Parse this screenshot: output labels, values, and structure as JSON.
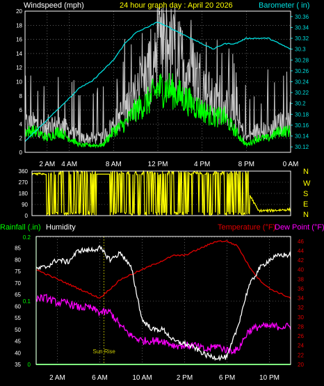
{
  "title": "24 hour graph day : April 20 2026",
  "colors": {
    "title": "#ffff00",
    "windspeed": "#ffffff",
    "gust": "#c8c8c8",
    "wind_avg": "#00ff00",
    "barometer": "#00e0e0",
    "direction": "#ffff00",
    "rainfall": "#00ff00",
    "humidity": "#ffffff",
    "temperature": "#e00000",
    "dewpoint": "#ff00ff",
    "axes": "#ffffff",
    "grid": "#9a9a9a",
    "sunrise": "#c8c800"
  },
  "chart_data": [
    {
      "type": "line",
      "title": "24 hour graph day : April 20 2026",
      "left_label": "Windspeed (mph)",
      "right_label": "Barometer ( in)",
      "x_ticks": [
        "2 AM",
        "4 AM",
        "8 AM",
        "12 PM",
        "4 PM",
        "8 PM",
        "0 AM"
      ],
      "ylim_left": [
        0,
        20
      ],
      "yticks_left": [
        "0",
        "2",
        "4",
        "6",
        "8",
        "10",
        "12",
        "14",
        "16",
        "18",
        "20"
      ],
      "ylim_right": [
        30.11,
        30.37
      ],
      "yticks_right": [
        "30.12",
        "30.14",
        "30.16",
        "30.18",
        "30.2",
        "30.22",
        "30.24",
        "30.26",
        "30.28",
        "30.3",
        "30.32",
        "30.34",
        "30.36"
      ],
      "x_hours": [
        0,
        1,
        2,
        3,
        4,
        5,
        6,
        7,
        8,
        9,
        10,
        11,
        12,
        13,
        14,
        15,
        16,
        17,
        18,
        19,
        20,
        21,
        22,
        23,
        24
      ],
      "series": [
        {
          "name": "Windspeed (mph)",
          "axis": "left",
          "values": [
            3,
            3,
            2,
            3,
            2,
            1,
            1,
            1,
            3,
            4,
            6,
            7,
            9,
            9,
            8,
            7,
            6,
            5,
            5,
            3,
            1,
            2,
            2,
            3,
            3
          ]
        },
        {
          "name": "",
          "axis": "left",
          "values": [
            4,
            4,
            3,
            4,
            3,
            2,
            2,
            2,
            4,
            6,
            8,
            11,
            14,
            15,
            13,
            12,
            10,
            7,
            7,
            5,
            2,
            3,
            3,
            4,
            4
          ]
        },
        {
          "name": "Barometer ( in)",
          "axis": "right",
          "values": [
            30.13,
            30.15,
            30.17,
            30.19,
            30.21,
            30.23,
            30.24,
            30.26,
            30.28,
            30.31,
            30.33,
            30.34,
            30.35,
            30.34,
            30.33,
            30.32,
            30.31,
            30.3,
            30.31,
            30.31,
            30.32,
            30.32,
            30.32,
            30.31,
            30.3
          ]
        }
      ]
    },
    {
      "type": "line",
      "ylim": [
        0,
        360
      ],
      "yticks": [
        "0",
        "90",
        "180",
        "270",
        "360"
      ],
      "direction_labels": [
        "N",
        "W",
        "S",
        "E",
        "N"
      ],
      "x_hours": [
        0,
        1,
        2,
        3,
        4,
        5,
        6,
        7,
        8,
        9,
        10,
        11,
        12,
        13,
        14,
        15,
        16,
        17,
        18,
        19,
        20,
        21,
        22,
        23,
        24
      ],
      "series": [
        {
          "name": "",
          "values": [
            340,
            330,
            250,
            200,
            180,
            60,
            330,
            340,
            160,
            200,
            180,
            220,
            170,
            210,
            190,
            200,
            230,
            250,
            240,
            230,
            200,
            40,
            40,
            45,
            50
          ]
        }
      ]
    },
    {
      "type": "line",
      "x_ticks": [
        "2 AM",
        "6 AM",
        "10 AM",
        "2 PM",
        "6 PM",
        "10 PM"
      ],
      "legend_left": [
        "Rainfall (.in)",
        "Humidity"
      ],
      "legend_right": [
        "Temperature (°F)",
        "Dew Point (°F)"
      ],
      "ylim_humidity": [
        35,
        90
      ],
      "yticks_humidity": [
        "35",
        "40",
        "45",
        "50",
        "55",
        "60",
        "65",
        "70",
        "75",
        "80",
        "85"
      ],
      "yticks_rain": [
        "0",
        "0.1",
        "0.2"
      ],
      "ylim_temperature": [
        20,
        47
      ],
      "yticks_temperature": [
        "20",
        "22",
        "24",
        "26",
        "28",
        "30",
        "32",
        "34",
        "36",
        "38",
        "40",
        "42",
        "44",
        "46"
      ],
      "annotation": "Sun Rise",
      "x_hours": [
        0,
        1,
        2,
        3,
        4,
        5,
        6,
        7,
        8,
        9,
        10,
        11,
        12,
        13,
        14,
        15,
        16,
        17,
        18,
        19,
        20,
        21,
        22,
        23,
        24
      ],
      "series": [
        {
          "name": "Humidity",
          "axis": "humidity",
          "values": [
            76,
            77,
            80,
            79,
            84,
            84,
            85,
            80,
            83,
            76,
            54,
            50,
            50,
            45,
            44,
            42,
            39,
            38,
            38,
            51,
            68,
            76,
            80,
            82,
            82
          ]
        },
        {
          "name": "Temperature (°F)",
          "axis": "temperature",
          "values": [
            40,
            39,
            38,
            37,
            36,
            35,
            34,
            36,
            38,
            39,
            40,
            41,
            42,
            43,
            43,
            44,
            45,
            46,
            46,
            45,
            41,
            38,
            36,
            35,
            34
          ]
        },
        {
          "name": "Dew Point (°F)",
          "axis": "temperature",
          "values": [
            34,
            34,
            33,
            33,
            32,
            32,
            31,
            31,
            28,
            26,
            25,
            25,
            25,
            24,
            24,
            24,
            23,
            24,
            23,
            23,
            27,
            28,
            28,
            28,
            28
          ]
        },
        {
          "name": "Rainfall (.in)",
          "axis": "rain",
          "values": [
            0,
            0,
            0,
            0,
            0,
            0,
            0,
            0,
            0,
            0,
            0,
            0,
            0,
            0,
            0,
            0,
            0,
            0,
            0,
            0,
            0,
            0,
            0,
            0,
            0
          ]
        }
      ]
    }
  ]
}
